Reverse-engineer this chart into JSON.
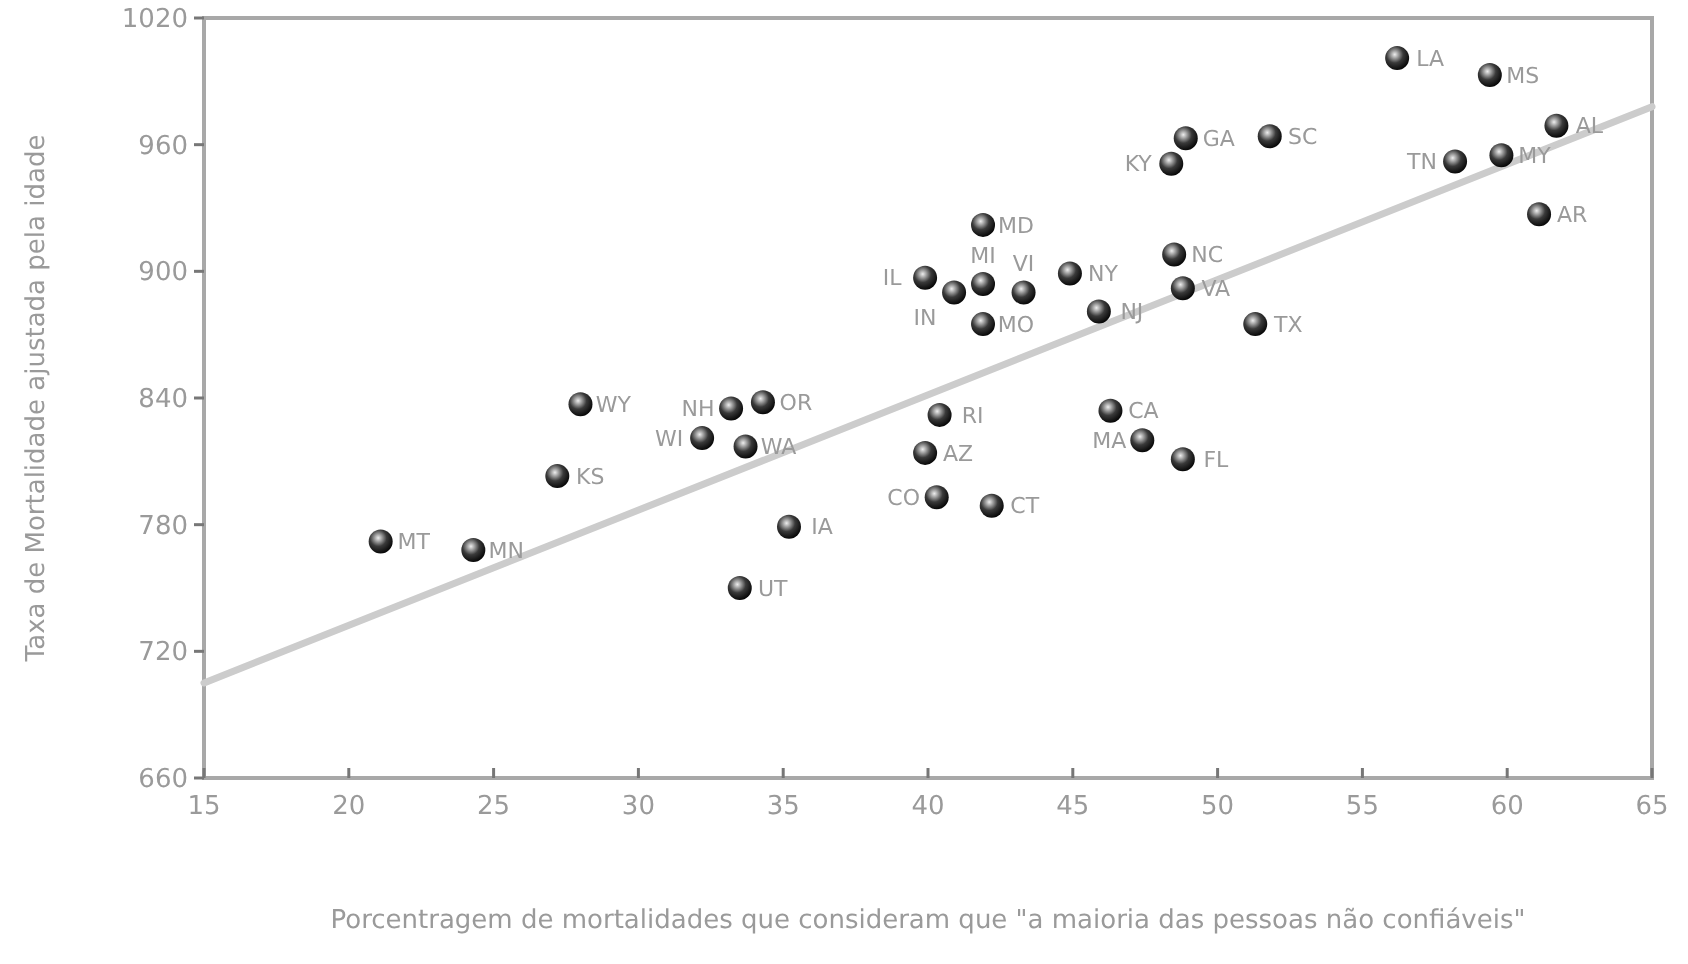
{
  "chart_data": {
    "type": "scatter",
    "xlabel": "Porcentragem de mortalidades que consideram que \"a maioria das pessoas não confiáveis\"",
    "ylabel": "Taxa de Mortalidade ajustada pela idade",
    "xlim": [
      15,
      65
    ],
    "xticks": [
      15,
      20,
      25,
      30,
      35,
      40,
      45,
      50,
      55,
      60,
      65
    ],
    "ylim": [
      660,
      1020
    ],
    "yticks": [
      660,
      720,
      780,
      840,
      900,
      960,
      1020
    ],
    "grid": false,
    "series": [
      {
        "color": "#3a3a3a",
        "marker": "circle",
        "x": [
          56.2,
          59.4,
          61.7,
          51.8,
          48.9,
          48.4,
          58.2,
          59.8,
          61.1,
          41.9,
          48.5,
          44.9,
          48.8,
          39.9,
          41.9,
          40.9,
          43.3,
          45.9,
          41.9,
          51.3,
          46.3,
          40.4,
          39.9,
          47.4,
          48.8,
          40.3,
          42.2,
          28.0,
          33.2,
          34.3,
          32.2,
          33.7,
          27.2,
          35.2,
          33.5,
          21.1,
          24.3
        ],
        "values": [
          1001,
          993,
          969,
          964,
          963,
          951,
          952,
          955,
          927,
          922,
          908,
          899,
          892,
          897,
          894,
          890,
          890,
          881,
          875,
          875,
          834,
          832,
          814,
          820,
          811,
          793,
          789,
          837,
          835,
          838,
          821,
          817,
          803,
          779,
          750,
          772,
          768
        ]
      },
      {
        "type": "line",
        "color": "#cccccc",
        "x": [
          15,
          65
        ],
        "values": [
          705,
          978
        ],
        "marker": "none"
      }
    ],
    "annotations": [
      {
        "text": "LA",
        "x": 56.2,
        "y": 1001
      },
      {
        "text": "MS",
        "x": 59.4,
        "y": 993
      },
      {
        "text": "AL",
        "x": 61.7,
        "y": 969
      },
      {
        "text": "SC",
        "x": 51.8,
        "y": 964
      },
      {
        "text": "GA",
        "x": 48.9,
        "y": 963
      },
      {
        "text": "KY",
        "x": 48.4,
        "y": 951
      },
      {
        "text": "TN",
        "x": 58.2,
        "y": 952
      },
      {
        "text": "MY",
        "x": 59.8,
        "y": 955
      },
      {
        "text": "AR",
        "x": 61.1,
        "y": 927
      },
      {
        "text": "MD",
        "x": 41.9,
        "y": 922
      },
      {
        "text": "NC",
        "x": 48.5,
        "y": 908
      },
      {
        "text": "NY",
        "x": 44.9,
        "y": 899
      },
      {
        "text": "VA",
        "x": 48.8,
        "y": 892
      },
      {
        "text": "IL",
        "x": 39.9,
        "y": 897
      },
      {
        "text": "MI",
        "x": 41.9,
        "y": 894
      },
      {
        "text": "IN",
        "x": 40.9,
        "y": 890
      },
      {
        "text": "VI",
        "x": 43.3,
        "y": 890
      },
      {
        "text": "NJ",
        "x": 45.9,
        "y": 881
      },
      {
        "text": "MO",
        "x": 41.9,
        "y": 875
      },
      {
        "text": "TX",
        "x": 51.3,
        "y": 875
      },
      {
        "text": "CA",
        "x": 46.3,
        "y": 834
      },
      {
        "text": "RI",
        "x": 40.4,
        "y": 832
      },
      {
        "text": "AZ",
        "x": 39.9,
        "y": 814
      },
      {
        "text": "MA",
        "x": 47.4,
        "y": 820
      },
      {
        "text": "FL",
        "x": 48.8,
        "y": 811
      },
      {
        "text": "CO",
        "x": 40.3,
        "y": 793
      },
      {
        "text": "CT",
        "x": 42.2,
        "y": 789
      },
      {
        "text": "WY",
        "x": 28.0,
        "y": 837
      },
      {
        "text": "NH",
        "x": 33.2,
        "y": 835
      },
      {
        "text": "OR",
        "x": 34.3,
        "y": 838
      },
      {
        "text": "WI",
        "x": 32.2,
        "y": 821
      },
      {
        "text": "WA",
        "x": 33.7,
        "y": 817
      },
      {
        "text": "KS",
        "x": 27.2,
        "y": 803
      },
      {
        "text": "IA",
        "x": 35.2,
        "y": 779
      },
      {
        "text": "UT",
        "x": 33.5,
        "y": 750
      },
      {
        "text": "MT",
        "x": 21.1,
        "y": 772
      },
      {
        "text": "MN",
        "x": 24.3,
        "y": 768
      }
    ]
  }
}
